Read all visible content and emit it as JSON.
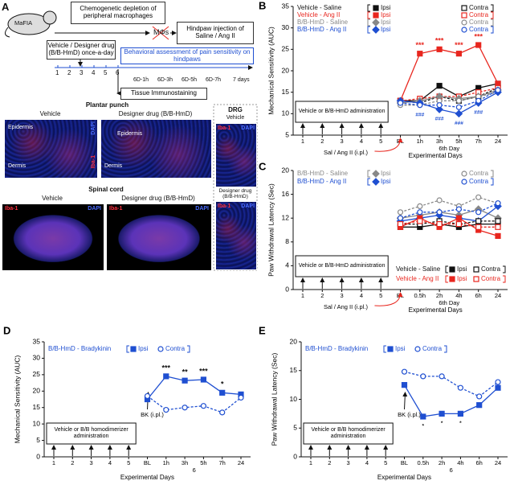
{
  "panel_a": {
    "label": "A",
    "mouse": "MaFIA",
    "depletion": "Chemogenetic depletion of peripheral macrophages",
    "cells": "MΦs",
    "injection": "Hindpaw injection of Saline / Ang II",
    "drug": "Vehicle / Designer drug (B/B-HmD) once-a-day",
    "timeline_days": [
      "1",
      "2",
      "3",
      "4",
      "5",
      "6"
    ],
    "behavior": "Behavioral assessment of pain sensitivity on hindpaws",
    "timepoints": [
      "6D-1h",
      "6D-3h",
      "6D-5h",
      "6D-7h",
      "7 days"
    ],
    "tissue": "Tissue Immunostaining",
    "plantar": {
      "title": "Plantar punch",
      "images": [
        {
          "label": "Vehicle",
          "layers": [
            "Epidermis",
            "Dermis"
          ],
          "stains": [
            "DAPI",
            "Iba-1"
          ]
        },
        {
          "label": "Designer drug (B/B-HmD)",
          "layers": [
            "Epidermis",
            "Dermis"
          ]
        }
      ]
    },
    "spinal": {
      "title": "Spinal cord",
      "images": [
        {
          "label": "Vehicle",
          "stains": [
            "Iba-1",
            "DAPI"
          ]
        },
        {
          "label": "Designer drug (B/B-HmD)",
          "stains": [
            "Iba-1",
            "DAPI"
          ]
        }
      ]
    },
    "drg": {
      "title": "DRG",
      "images": [
        {
          "label": "Vehicle",
          "stains": [
            "Iba-1",
            "DAPI"
          ]
        },
        {
          "label": "Designer drug (B/B-HmD)",
          "stains": [
            "Iba-1",
            "DAPI"
          ]
        }
      ]
    }
  },
  "chart_data": [
    {
      "type": "line",
      "panel_label": "B",
      "ylabel": "Mechanical Sensitivity (AUC)",
      "xlabel": "Experimental Days",
      "day_label": "6th Day",
      "categories": [
        "1",
        "2",
        "3",
        "4",
        "5",
        "BL",
        "1h",
        "3h",
        "5h",
        "7h",
        "24"
      ],
      "ylim": [
        5,
        35
      ],
      "yticks": [
        5,
        10,
        15,
        20,
        25,
        30,
        35
      ],
      "treatment_box": "Vehicle or B/B-HmD administration",
      "injection": "Sal / Ang II (i.pl.)",
      "groups": [
        {
          "name": "Vehicle - Saline",
          "series": [
            {
              "name": "Ipsi",
              "color": "#111111",
              "marker": "square",
              "dash": false,
              "values": [
                null,
                null,
                null,
                null,
                null,
                13,
                13,
                16.5,
                14,
                16,
                17
              ]
            },
            {
              "name": "Contra",
              "color": "#111111",
              "marker": "open-square",
              "dash": true,
              "values": [
                null,
                null,
                null,
                null,
                null,
                13,
                12.5,
                14,
                13,
                14,
                16
              ]
            }
          ]
        },
        {
          "name": "Vehicle - Ang II",
          "series": [
            {
              "name": "Ipsi",
              "color": "#e8261e",
              "marker": "square",
              "dash": false,
              "values": [
                null,
                null,
                null,
                null,
                null,
                13,
                24,
                25,
                24,
                26,
                17
              ]
            },
            {
              "name": "Contra",
              "color": "#e8261e",
              "marker": "open-square",
              "dash": true,
              "values": [
                null,
                null,
                null,
                null,
                null,
                13,
                13.5,
                14,
                14,
                15,
                16
              ]
            }
          ]
        },
        {
          "name": "B/B-HmD - Saline",
          "series": [
            {
              "name": "Ipsi",
              "color": "#888888",
              "marker": "diamond",
              "dash": false,
              "values": [
                null,
                null,
                null,
                null,
                null,
                12.5,
                13,
                14,
                13.5,
                14,
                15.5
              ]
            },
            {
              "name": "Contra",
              "color": "#888888",
              "marker": "open-circle",
              "dash": true,
              "values": [
                null,
                null,
                null,
                null,
                null,
                12,
                12,
                13,
                13,
                14,
                15
              ]
            }
          ]
        },
        {
          "name": "B/B-HmD - Ang II",
          "series": [
            {
              "name": "Ipsi",
              "color": "#1f4fd1",
              "marker": "diamond",
              "dash": false,
              "values": [
                null,
                null,
                null,
                null,
                null,
                13,
                12.5,
                11,
                10,
                12.5,
                15
              ]
            },
            {
              "name": "Contra",
              "color": "#1f4fd1",
              "marker": "open-circle",
              "dash": true,
              "values": [
                null,
                null,
                null,
                null,
                null,
                12.5,
                12,
                12,
                11.5,
                13,
                15.5
              ]
            }
          ]
        }
      ],
      "annotations": [
        {
          "text": "***",
          "category": "1h",
          "side": "above",
          "color": "#e8261e"
        },
        {
          "text": "***",
          "category": "3h",
          "side": "above",
          "color": "#e8261e"
        },
        {
          "text": "***",
          "category": "5h",
          "side": "above",
          "color": "#e8261e"
        },
        {
          "text": "***",
          "category": "7h",
          "side": "above",
          "color": "#e8261e"
        },
        {
          "text": "###",
          "category": "1h",
          "side": "below",
          "color": "#1f4fd1"
        },
        {
          "text": "###",
          "category": "3h",
          "side": "below",
          "color": "#1f4fd1"
        },
        {
          "text": "###",
          "category": "5h",
          "side": "below",
          "color": "#1f4fd1"
        },
        {
          "text": "###",
          "category": "7h",
          "side": "below",
          "color": "#1f4fd1"
        }
      ]
    },
    {
      "type": "line",
      "panel_label": "C",
      "ylabel": "Paw Withdrawal Latency (Sec)",
      "xlabel": "Experimental Days",
      "day_label": "6th Day",
      "categories": [
        "1",
        "2",
        "3",
        "4",
        "5",
        "BL",
        "0.5h",
        "2h",
        "4h",
        "6h",
        "24"
      ],
      "ylim": [
        0,
        20
      ],
      "yticks": [
        0,
        4,
        8,
        12,
        16,
        20
      ],
      "treatment_box": "Vehicle or B/B-HmD administration",
      "injection": "Sal / Ang II (i.pl.)",
      "groups": [
        {
          "name": "B/B-HmD - Saline",
          "series": [
            {
              "name": "Ipsi",
              "color": "#888888",
              "marker": "diamond",
              "dash": false,
              "values": [
                null,
                null,
                null,
                null,
                null,
                12,
                12.5,
                13,
                12.5,
                13.5,
                12
              ]
            },
            {
              "name": "Contra",
              "color": "#888888",
              "marker": "open-circle",
              "dash": true,
              "values": [
                null,
                null,
                null,
                null,
                null,
                13,
                14,
                15,
                14,
                15.5,
                14.5
              ]
            }
          ]
        },
        {
          "name": "B/B-HmD - Ang II",
          "series": [
            {
              "name": "Ipsi",
              "color": "#1f4fd1",
              "marker": "diamond",
              "dash": false,
              "values": [
                null,
                null,
                null,
                null,
                null,
                11.5,
                12,
                12.5,
                12,
                11.5,
                14
              ]
            },
            {
              "name": "Contra",
              "color": "#1f4fd1",
              "marker": "open-circle",
              "dash": true,
              "values": [
                null,
                null,
                null,
                null,
                null,
                12,
                13,
                13,
                13.5,
                13,
                14.5
              ]
            }
          ]
        },
        {
          "name": "Vehicle - Saline",
          "series": [
            {
              "name": "Ipsi",
              "color": "#111111",
              "marker": "square",
              "dash": false,
              "values": [
                null,
                null,
                null,
                null,
                null,
                10.5,
                10.5,
                11,
                10.5,
                11,
                11
              ]
            },
            {
              "name": "Contra",
              "color": "#111111",
              "marker": "open-square",
              "dash": true,
              "values": [
                null,
                null,
                null,
                null,
                null,
                11,
                11,
                11.5,
                11,
                11.5,
                11.5
              ]
            }
          ]
        },
        {
          "name": "Vehicle - Ang II",
          "series": [
            {
              "name": "Ipsi",
              "color": "#e8261e",
              "marker": "square",
              "dash": false,
              "values": [
                null,
                null,
                null,
                null,
                null,
                10.5,
                12,
                10.5,
                12,
                10,
                9
              ]
            },
            {
              "name": "Contra",
              "color": "#e8261e",
              "marker": "open-square",
              "dash": true,
              "values": [
                null,
                null,
                null,
                null,
                null,
                11,
                11.5,
                11,
                11,
                10.5,
                10.5
              ]
            }
          ]
        }
      ],
      "annotations": []
    },
    {
      "type": "line",
      "panel_label": "D",
      "ylabel": "Mechanical Sensitivity (AUC)",
      "xlabel": "Experimental Days",
      "day_label": "6",
      "categories": [
        "1",
        "2",
        "3",
        "4",
        "5",
        "BL",
        "1h",
        "3h",
        "5h",
        "7h",
        "24"
      ],
      "ylim": [
        0,
        35
      ],
      "yticks": [
        0,
        5,
        10,
        15,
        20,
        25,
        30,
        35
      ],
      "treatment_box": "Vehicle or B/B homodimerizer administration",
      "injection": "BK (i.pl.)",
      "groups": [
        {
          "name": "B/B-HmD - Bradykinin",
          "series": [
            {
              "name": "Ipsi",
              "color": "#1f4fd1",
              "marker": "square",
              "dash": false,
              "values": [
                null,
                null,
                null,
                null,
                null,
                17.5,
                24.5,
                23.2,
                23.5,
                19.5,
                19
              ]
            },
            {
              "name": "Contra",
              "color": "#1f4fd1",
              "marker": "open-circle",
              "dash": true,
              "values": [
                null,
                null,
                null,
                null,
                null,
                18.5,
                14.3,
                15,
                15.5,
                13.5,
                18
              ]
            }
          ]
        }
      ],
      "annotations": [
        {
          "text": "***",
          "category": "1h",
          "side": "above",
          "color": "#111111"
        },
        {
          "text": "**",
          "category": "3h",
          "side": "above",
          "color": "#111111"
        },
        {
          "text": "***",
          "category": "5h",
          "side": "above",
          "color": "#111111"
        },
        {
          "text": "*",
          "category": "7h",
          "side": "above",
          "color": "#111111"
        }
      ]
    },
    {
      "type": "line",
      "panel_label": "E",
      "ylabel": "Paw Withdrawal Latency (Sec)",
      "xlabel": "Experimental Days",
      "day_label": "6",
      "categories": [
        "1",
        "2",
        "3",
        "4",
        "5",
        "BL",
        "0.5h",
        "2h",
        "4h",
        "6h",
        "24"
      ],
      "ylim": [
        0,
        20
      ],
      "yticks": [
        0,
        5,
        10,
        15,
        20
      ],
      "treatment_box": "Vehicle or B/B homodimerizer administration",
      "injection": "BK (i.pl.)",
      "groups": [
        {
          "name": "B/B-HmD - Bradykinin",
          "series": [
            {
              "name": "Ipsi",
              "color": "#1f4fd1",
              "marker": "square",
              "dash": false,
              "values": [
                null,
                null,
                null,
                null,
                null,
                12.5,
                7,
                7.5,
                7.5,
                9,
                12
              ]
            },
            {
              "name": "Contra",
              "color": "#1f4fd1",
              "marker": "open-circle",
              "dash": true,
              "values": [
                null,
                null,
                null,
                null,
                null,
                14.8,
                14,
                14,
                12,
                10.5,
                13
              ]
            }
          ]
        }
      ],
      "annotations": [
        {
          "text": "*",
          "category": "0.5h",
          "side": "below",
          "color": "#111111"
        },
        {
          "text": "*",
          "category": "2h",
          "side": "below",
          "color": "#111111"
        },
        {
          "text": "*",
          "category": "4h",
          "side": "below",
          "color": "#111111"
        }
      ]
    }
  ]
}
